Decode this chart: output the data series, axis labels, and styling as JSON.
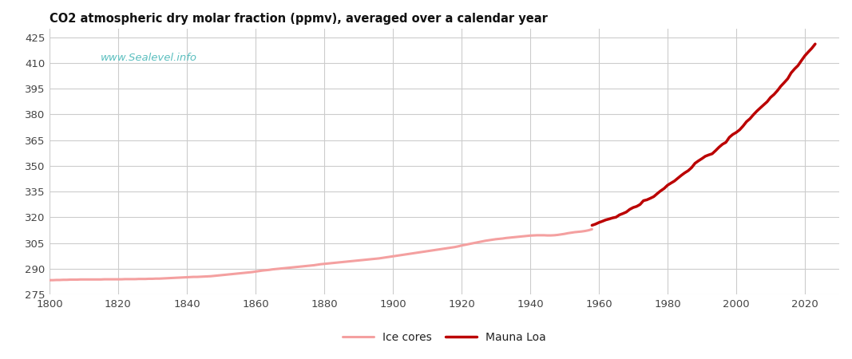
{
  "title": "CO2 atmospheric dry molar fraction (ppmv), averaged over a calendar year",
  "watermark": "www.Sealevel.info",
  "watermark_color": "#5bbfbf",
  "background_color": "#ffffff",
  "grid_color": "#cccccc",
  "xlim": [
    1800,
    2030
  ],
  "ylim": [
    275,
    430
  ],
  "yticks": [
    275,
    290,
    305,
    320,
    335,
    350,
    365,
    380,
    395,
    410,
    425
  ],
  "xticks": [
    1800,
    1820,
    1840,
    1860,
    1880,
    1900,
    1920,
    1940,
    1960,
    1980,
    2000,
    2020
  ],
  "ice_color": "#f4a0a0",
  "mauna_color": "#bb0000",
  "ice_linewidth": 2.2,
  "mauna_linewidth": 2.5,
  "legend_ice": "Ice cores",
  "legend_mauna": "Mauna Loa",
  "ice_years": [
    1800,
    1801,
    1802,
    1803,
    1804,
    1805,
    1806,
    1807,
    1808,
    1809,
    1810,
    1811,
    1812,
    1813,
    1814,
    1815,
    1816,
    1817,
    1818,
    1819,
    1820,
    1821,
    1822,
    1823,
    1824,
    1825,
    1826,
    1827,
    1828,
    1829,
    1830,
    1831,
    1832,
    1833,
    1834,
    1835,
    1836,
    1837,
    1838,
    1839,
    1840,
    1841,
    1842,
    1843,
    1844,
    1845,
    1846,
    1847,
    1848,
    1849,
    1850,
    1851,
    1852,
    1853,
    1854,
    1855,
    1856,
    1857,
    1858,
    1859,
    1860,
    1861,
    1862,
    1863,
    1864,
    1865,
    1866,
    1867,
    1868,
    1869,
    1870,
    1871,
    1872,
    1873,
    1874,
    1875,
    1876,
    1877,
    1878,
    1879,
    1880,
    1881,
    1882,
    1883,
    1884,
    1885,
    1886,
    1887,
    1888,
    1889,
    1890,
    1891,
    1892,
    1893,
    1894,
    1895,
    1896,
    1897,
    1898,
    1899,
    1900,
    1901,
    1902,
    1903,
    1904,
    1905,
    1906,
    1907,
    1908,
    1909,
    1910,
    1911,
    1912,
    1913,
    1914,
    1915,
    1916,
    1917,
    1918,
    1919,
    1920,
    1921,
    1922,
    1923,
    1924,
    1925,
    1926,
    1927,
    1928,
    1929,
    1930,
    1931,
    1932,
    1933,
    1934,
    1935,
    1936,
    1937,
    1938,
    1939,
    1940,
    1941,
    1942,
    1943,
    1944,
    1945,
    1946,
    1947,
    1948,
    1949,
    1950,
    1951,
    1952,
    1953,
    1954,
    1955,
    1956,
    1957,
    1958
  ],
  "ice_co2": [
    283.3,
    283.3,
    283.4,
    283.4,
    283.5,
    283.5,
    283.6,
    283.6,
    283.6,
    283.7,
    283.7,
    283.7,
    283.7,
    283.7,
    283.7,
    283.7,
    283.8,
    283.8,
    283.8,
    283.8,
    283.8,
    283.8,
    283.9,
    283.9,
    283.9,
    283.9,
    284.0,
    284.0,
    284.0,
    284.1,
    284.1,
    284.2,
    284.2,
    284.3,
    284.4,
    284.5,
    284.6,
    284.7,
    284.8,
    284.9,
    285.0,
    285.1,
    285.2,
    285.2,
    285.3,
    285.4,
    285.5,
    285.6,
    285.8,
    286.0,
    286.2,
    286.4,
    286.6,
    286.8,
    287.0,
    287.2,
    287.4,
    287.6,
    287.8,
    288.0,
    288.3,
    288.6,
    288.9,
    289.1,
    289.3,
    289.6,
    289.8,
    290.0,
    290.2,
    290.4,
    290.6,
    290.8,
    291.0,
    291.2,
    291.4,
    291.6,
    291.8,
    292.0,
    292.3,
    292.6,
    292.8,
    293.0,
    293.2,
    293.4,
    293.6,
    293.8,
    294.0,
    294.2,
    294.4,
    294.6,
    294.8,
    295.0,
    295.2,
    295.4,
    295.6,
    295.8,
    296.0,
    296.3,
    296.6,
    296.9,
    297.2,
    297.5,
    297.8,
    298.1,
    298.4,
    298.7,
    299.0,
    299.3,
    299.6,
    299.9,
    300.2,
    300.5,
    300.8,
    301.1,
    301.4,
    301.7,
    302.0,
    302.3,
    302.6,
    303.0,
    303.5,
    303.9,
    304.3,
    304.7,
    305.1,
    305.5,
    305.9,
    306.3,
    306.6,
    306.9,
    307.2,
    307.4,
    307.6,
    307.9,
    308.1,
    308.3,
    308.5,
    308.7,
    308.9,
    309.1,
    309.3,
    309.4,
    309.5,
    309.5,
    309.5,
    309.4,
    309.4,
    309.5,
    309.7,
    310.0,
    310.3,
    310.7,
    311.0,
    311.3,
    311.5,
    311.7,
    312.0,
    312.4,
    313.0
  ],
  "mauna_years": [
    1958,
    1959,
    1960,
    1961,
    1962,
    1963,
    1964,
    1965,
    1966,
    1967,
    1968,
    1969,
    1970,
    1971,
    1972,
    1973,
    1974,
    1975,
    1976,
    1977,
    1978,
    1979,
    1980,
    1981,
    1982,
    1983,
    1984,
    1985,
    1986,
    1987,
    1988,
    1989,
    1990,
    1991,
    1992,
    1993,
    1994,
    1995,
    1996,
    1997,
    1998,
    1999,
    2000,
    2001,
    2002,
    2003,
    2004,
    2005,
    2006,
    2007,
    2008,
    2009,
    2010,
    2011,
    2012,
    2013,
    2014,
    2015,
    2016,
    2017,
    2018,
    2019,
    2020,
    2021,
    2022,
    2023
  ],
  "mauna_co2": [
    315.3,
    315.98,
    316.91,
    317.64,
    318.45,
    318.99,
    319.62,
    320.04,
    321.38,
    322.16,
    323.04,
    324.62,
    325.68,
    326.32,
    327.45,
    329.68,
    330.18,
    331.08,
    332.05,
    333.78,
    335.41,
    336.78,
    338.68,
    339.93,
    341.13,
    342.78,
    344.42,
    345.9,
    347.15,
    348.93,
    351.48,
    352.91,
    354.19,
    355.59,
    356.37,
    357.04,
    358.88,
    360.88,
    362.59,
    363.71,
    366.63,
    368.31,
    369.48,
    371.02,
    373.22,
    375.77,
    377.49,
    379.8,
    381.9,
    383.76,
    385.59,
    387.38,
    389.9,
    391.63,
    393.86,
    396.48,
    398.61,
    400.83,
    404.24,
    406.55,
    408.52,
    411.44,
    414.24,
    416.45,
    418.56,
    421.08
  ]
}
